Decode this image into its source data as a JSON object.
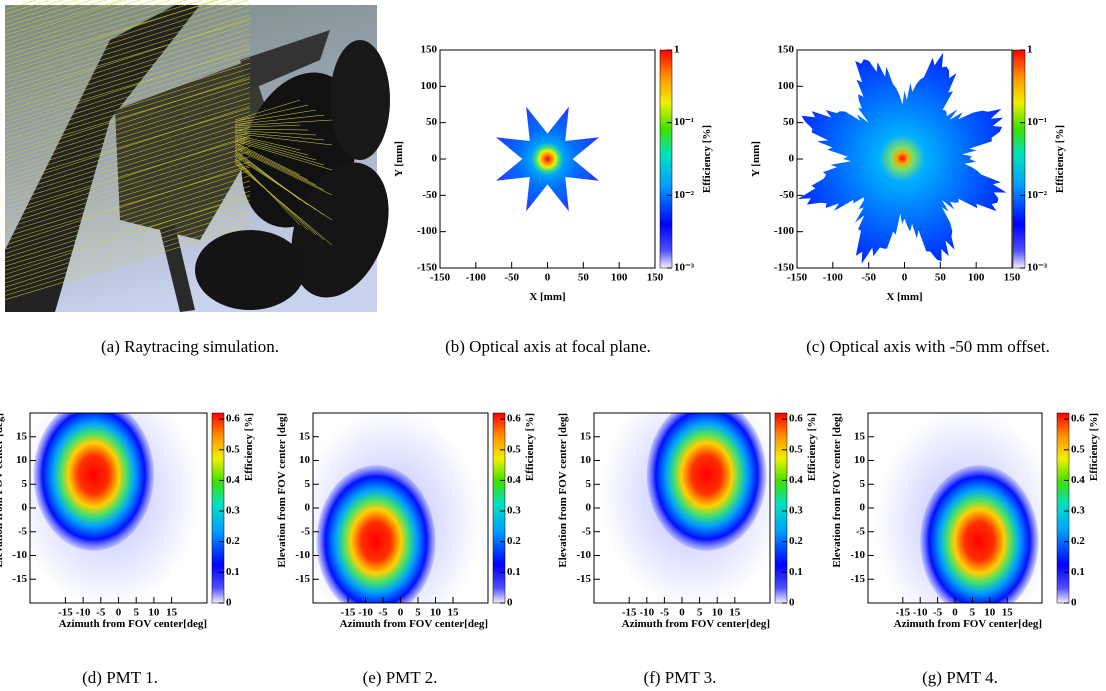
{
  "panels": [
    {
      "caption": "(a) Raytracing simulation."
    },
    {
      "caption": "(b) Optical axis at focal plane.",
      "plot": {
        "xlabel": "X [mm]",
        "ylabel": "Y [mm]",
        "zlabel": "Efficiency [%]",
        "xlim": [
          -150,
          150
        ],
        "ylim": [
          -150,
          150
        ],
        "zlim": [
          0.001,
          1
        ],
        "zscale": "log",
        "xticks": [
          -150,
          -100,
          -50,
          0,
          50,
          100,
          150
        ],
        "yticks": [
          -150,
          -100,
          -50,
          0,
          50,
          100,
          150
        ],
        "zticks": [
          {
            "value": 0.001,
            "label": "10⁻³"
          },
          {
            "value": 0.01,
            "label": "10⁻²"
          },
          {
            "value": 0.1,
            "label": "10⁻¹"
          },
          1
        ]
      }
    },
    {
      "caption": "(c) Optical axis with -50 mm offset.",
      "plot": {
        "xlabel": "X [mm]",
        "ylabel": "Y [mm]",
        "zlabel": "Efficiency [%]",
        "xlim": [
          -150,
          150
        ],
        "ylim": [
          -150,
          150
        ],
        "zlim": [
          0.001,
          1
        ],
        "zscale": "log",
        "xticks": [
          -150,
          -100,
          -50,
          0,
          50,
          100,
          150
        ],
        "yticks": [
          -150,
          -100,
          -50,
          0,
          50,
          100,
          150
        ],
        "zticks": [
          {
            "value": 0.001,
            "label": "10⁻³"
          },
          {
            "value": 0.01,
            "label": "10⁻²"
          },
          {
            "value": 0.1,
            "label": "10⁻¹"
          },
          1
        ]
      }
    },
    {
      "caption": "(d) PMT 1.",
      "plot": {
        "xlabel": "Azimuth from FOV center[deg]",
        "ylabel": "Elevation from FOV center [deg]",
        "zlabel": "Efficiency [%]",
        "xlim": [
          -25,
          25
        ],
        "ylim": [
          -20,
          20
        ],
        "zlim": [
          0,
          0.62
        ],
        "zscale": "linear",
        "xticks": [
          -15,
          -10,
          -5,
          0,
          5,
          10,
          15
        ],
        "yticks": [
          -15,
          -10,
          -5,
          0,
          5,
          10,
          15
        ],
        "zticks": [
          0,
          0.1,
          0.2,
          0.3,
          0.4,
          0.5,
          0.6
        ]
      }
    },
    {
      "caption": "(e) PMT 2.",
      "plot": {
        "xlabel": "Azimuth from FOV center[deg]",
        "ylabel": "Elevation from FOV center [deg]",
        "zlabel": "Efficiency [%]",
        "xlim": [
          -25,
          25
        ],
        "ylim": [
          -20,
          20
        ],
        "zlim": [
          0,
          0.62
        ],
        "zscale": "linear",
        "xticks": [
          -15,
          -10,
          -5,
          0,
          5,
          10,
          15
        ],
        "yticks": [
          -15,
          -10,
          -5,
          0,
          5,
          10,
          15
        ],
        "zticks": [
          0,
          0.1,
          0.2,
          0.3,
          0.4,
          0.5,
          0.6
        ]
      }
    },
    {
      "caption": "(f) PMT 3.",
      "plot": {
        "xlabel": "Azimuth from FOV center[deg]",
        "ylabel": "Elevation from FOV center [deg]",
        "zlabel": "Efficiency [%]",
        "xlim": [
          -25,
          25
        ],
        "ylim": [
          -20,
          20
        ],
        "zlim": [
          0,
          0.62
        ],
        "zscale": "linear",
        "xticks": [
          -15,
          -10,
          -5,
          0,
          5,
          10,
          15
        ],
        "yticks": [
          -15,
          -10,
          -5,
          0,
          5,
          10,
          15
        ],
        "zticks": [
          0,
          0.1,
          0.2,
          0.3,
          0.4,
          0.5,
          0.6
        ]
      }
    },
    {
      "caption": "(g) PMT 4.",
      "plot": {
        "xlabel": "Azimuth from FOV center[deg]",
        "ylabel": "Elevation from FOV center [deg]",
        "zlabel": "Efficiency [%]",
        "xlim": [
          -25,
          25
        ],
        "ylim": [
          -20,
          20
        ],
        "zlim": [
          0,
          0.62
        ],
        "zscale": "linear",
        "xticks": [
          -15,
          -10,
          -5,
          0,
          5,
          10,
          15
        ],
        "yticks": [
          -15,
          -10,
          -5,
          0,
          5,
          10,
          15
        ],
        "zticks": [
          0,
          0.1,
          0.2,
          0.3,
          0.4,
          0.5,
          0.6
        ]
      }
    }
  ]
}
